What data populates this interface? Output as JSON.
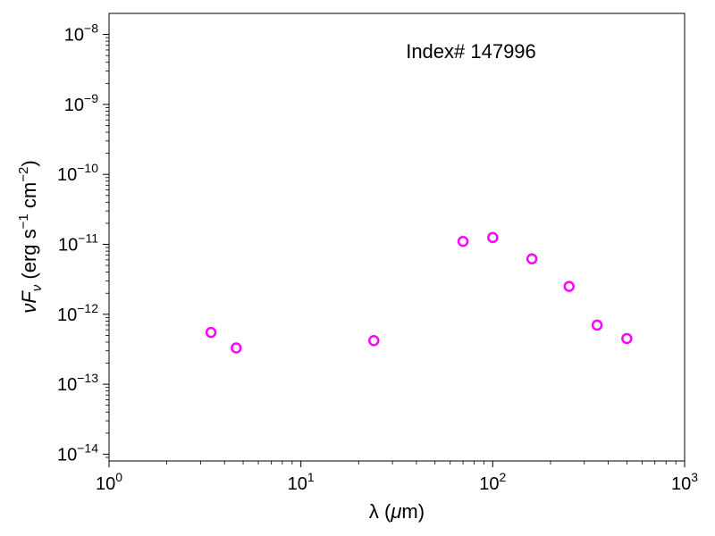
{
  "chart_data": {
    "type": "scatter",
    "title": "",
    "annotation": "Index# 147996",
    "xlabel": {
      "prefix": "λ (",
      "greek": "μ",
      "suffix": "m)"
    },
    "ylabel": {
      "nu": "ν",
      "F": "F",
      "sub": "ν",
      "mid1": " (erg s",
      "exp1": "−1",
      "mid2": " cm",
      "exp2": "−2",
      "end": ")"
    },
    "xscale": "log",
    "yscale": "log",
    "xlim": [
      1,
      1000
    ],
    "ylim": [
      8e-15,
      2e-08
    ],
    "x_major_ticks": [
      1,
      10,
      100,
      1000
    ],
    "x_tick_labels": [
      {
        "base": "10",
        "exp": "0"
      },
      {
        "base": "10",
        "exp": "1"
      },
      {
        "base": "10",
        "exp": "2"
      },
      {
        "base": "10",
        "exp": "3"
      }
    ],
    "y_major_ticks": [
      1e-14,
      1e-13,
      1e-12,
      1e-11,
      1e-10,
      1e-09,
      1e-08
    ],
    "y_tick_labels": [
      {
        "base": "10",
        "exp": "−14"
      },
      {
        "base": "10",
        "exp": "−13"
      },
      {
        "base": "10",
        "exp": "−12"
      },
      {
        "base": "10",
        "exp": "−11"
      },
      {
        "base": "10",
        "exp": "−10"
      },
      {
        "base": "10",
        "exp": "−9"
      },
      {
        "base": "10",
        "exp": "−8"
      }
    ],
    "grid": false,
    "marker": "open-circle",
    "marker_color": "#ff00ff",
    "series": [
      {
        "x": [
          3.4,
          4.6,
          24,
          70,
          100,
          160,
          250,
          350,
          500
        ],
        "y": [
          5.5e-13,
          3.3e-13,
          4.2e-13,
          1.1e-11,
          1.25e-11,
          6.2e-12,
          2.5e-12,
          7e-13,
          4.5e-13
        ]
      }
    ]
  }
}
